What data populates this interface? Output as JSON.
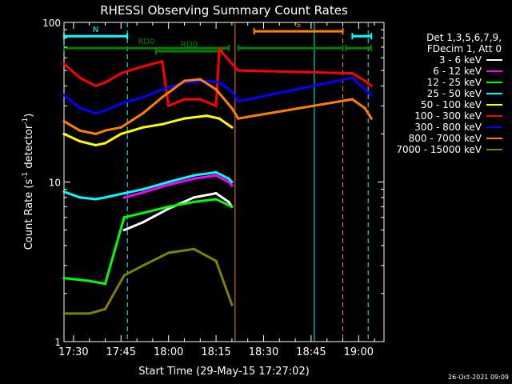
{
  "chart_data": {
    "type": "line",
    "title": "RHESSI Observing Summary Count Rates",
    "xlabel": "Start Time (29-May-15 17:27:02)",
    "ylabel": "Count Rate (s",
    "ylabel_sup": "-1",
    "ylabel_tail": " detector",
    "ylabel_tail_sup": "-1",
    "ylabel_close": ")",
    "y_scale": "log",
    "ylim": [
      1,
      100
    ],
    "y_ticks": [
      "1",
      "10",
      "100"
    ],
    "xlim": [
      "17:27",
      "19:08"
    ],
    "x_ticks": [
      "17:30",
      "17:45",
      "18:00",
      "18:15",
      "18:30",
      "18:45",
      "19:00"
    ],
    "legend_header": [
      "Det 1,3,5,6,7,9,",
      "FDecim 1, Att 0"
    ],
    "legend_position": "right",
    "timestamp": "26-Oct-2021 09:09",
    "series": [
      {
        "name": "3 - 6 keV",
        "color": "#ffffff",
        "points": [
          [
            "17:46",
            5.0
          ],
          [
            "17:52",
            5.6
          ],
          [
            "18:00",
            6.8
          ],
          [
            "18:08",
            8.0
          ],
          [
            "18:15",
            8.5
          ],
          [
            "18:19",
            7.5
          ],
          [
            "18:20",
            7.0
          ]
        ]
      },
      {
        "name": "6 - 12 keV",
        "color": "#ff00ff",
        "points": [
          [
            "17:46",
            8.0
          ],
          [
            "17:52",
            8.6
          ],
          [
            "18:00",
            9.6
          ],
          [
            "18:08",
            10.5
          ],
          [
            "18:15",
            11.0
          ],
          [
            "18:19",
            10.0
          ],
          [
            "18:20",
            9.5
          ]
        ]
      },
      {
        "name": "12 - 25 keV",
        "color": "#00ff00",
        "points": [
          [
            "17:27",
            2.5
          ],
          [
            "17:35",
            2.4
          ],
          [
            "17:40",
            2.3
          ],
          [
            "17:46",
            6.0
          ],
          [
            "17:52",
            6.4
          ],
          [
            "18:00",
            7.0
          ],
          [
            "18:08",
            7.5
          ],
          [
            "18:15",
            7.8
          ],
          [
            "18:20",
            7.0
          ]
        ]
      },
      {
        "name": "25 - 50 keV",
        "color": "#00ffff",
        "points": [
          [
            "17:27",
            8.7
          ],
          [
            "17:32",
            8.0
          ],
          [
            "17:37",
            7.8
          ],
          [
            "17:40",
            8.0
          ],
          [
            "17:46",
            8.5
          ],
          [
            "17:52",
            9.0
          ],
          [
            "18:00",
            10.0
          ],
          [
            "18:08",
            11.0
          ],
          [
            "18:15",
            11.5
          ],
          [
            "18:19",
            10.5
          ],
          [
            "18:20",
            10.0
          ]
        ]
      },
      {
        "name": "50 - 100 keV",
        "color": "#ffff00",
        "points": [
          [
            "17:27",
            20
          ],
          [
            "17:32",
            18
          ],
          [
            "17:37",
            17
          ],
          [
            "17:40",
            17.5
          ],
          [
            "17:45",
            20
          ],
          [
            "17:52",
            22
          ],
          [
            "17:58",
            23
          ],
          [
            "18:05",
            25
          ],
          [
            "18:12",
            26
          ],
          [
            "18:16",
            25
          ],
          [
            "18:20",
            22
          ]
        ]
      },
      {
        "name": "100 - 300 keV",
        "color": "#ff0000",
        "points": [
          [
            "17:27",
            55
          ],
          [
            "17:32",
            45
          ],
          [
            "17:37",
            40
          ],
          [
            "17:40",
            42
          ],
          [
            "17:45",
            48
          ],
          [
            "17:52",
            53
          ],
          [
            "17:58",
            57
          ],
          [
            "18:00",
            30
          ],
          [
            "18:05",
            33
          ],
          [
            "18:10",
            33
          ],
          [
            "18:15",
            30
          ],
          [
            "18:16",
            68
          ],
          [
            "18:20",
            55
          ],
          [
            "18:22",
            50
          ],
          [
            "18:58",
            48
          ],
          [
            "19:02",
            43
          ],
          [
            "19:04",
            40
          ]
        ]
      },
      {
        "name": "300 - 800 keV",
        "color": "#0000ff",
        "points": [
          [
            "17:27",
            35
          ],
          [
            "17:32",
            29
          ],
          [
            "17:37",
            27
          ],
          [
            "17:40",
            28
          ],
          [
            "17:45",
            31
          ],
          [
            "17:52",
            34
          ],
          [
            "17:58",
            38
          ],
          [
            "18:05",
            42
          ],
          [
            "18:12",
            43
          ],
          [
            "18:16",
            42
          ],
          [
            "18:20",
            37
          ],
          [
            "18:22",
            32
          ],
          [
            "18:58",
            45
          ],
          [
            "19:02",
            38
          ],
          [
            "19:04",
            35
          ]
        ]
      },
      {
        "name": "800 - 7000 keV",
        "color": "#ff8000",
        "points": [
          [
            "17:27",
            24
          ],
          [
            "17:32",
            21
          ],
          [
            "17:37",
            20
          ],
          [
            "17:40",
            21
          ],
          [
            "17:45",
            22
          ],
          [
            "17:52",
            27
          ],
          [
            "17:58",
            34
          ],
          [
            "18:05",
            43
          ],
          [
            "18:10",
            44
          ],
          [
            "18:15",
            38
          ],
          [
            "18:20",
            29
          ],
          [
            "18:22",
            25
          ],
          [
            "18:58",
            33
          ],
          [
            "19:02",
            29
          ],
          [
            "19:04",
            25
          ]
        ]
      },
      {
        "name": "7000 - 15000 keV",
        "color": "#808000",
        "points": [
          [
            "17:27",
            1.5
          ],
          [
            "17:35",
            1.5
          ],
          [
            "17:40",
            1.6
          ],
          [
            "17:46",
            2.6
          ],
          [
            "17:52",
            3.0
          ],
          [
            "18:00",
            3.6
          ],
          [
            "18:08",
            3.8
          ],
          [
            "18:15",
            3.2
          ],
          [
            "18:20",
            1.7
          ]
        ]
      }
    ],
    "annotations": [
      {
        "label": "N",
        "color": "#00ffff",
        "type": "bar",
        "from": "17:27",
        "to": "17:47",
        "y": 82
      },
      {
        "label": "",
        "color": "#00ffff",
        "type": "bar",
        "from": "18:58",
        "to": "19:04",
        "y": 82
      },
      {
        "label": "S",
        "color": "#ff8000",
        "type": "bar",
        "from": "18:27",
        "to": "18:55",
        "y": 88
      },
      {
        "label": "RD0",
        "color": "#008000",
        "type": "bar",
        "from": "17:27",
        "to": "18:19",
        "y": 69
      },
      {
        "label": "",
        "color": "#008000",
        "type": "bar",
        "from": "18:22",
        "to": "18:55",
        "y": 69
      },
      {
        "label": "",
        "color": "#008000",
        "type": "bar",
        "from": "18:56",
        "to": "19:04",
        "y": 69
      },
      {
        "label": "RD0",
        "color": "#008000",
        "type": "bar",
        "from": "17:56",
        "to": "18:17",
        "y": 66
      }
    ],
    "vlines": [
      {
        "t": "17:47",
        "color": "#00ffff",
        "dashed": true
      },
      {
        "t": "18:21",
        "color": "#ff8000",
        "dashed": false
      },
      {
        "t": "18:46",
        "color": "#00ffff",
        "dashed": false
      },
      {
        "t": "18:55",
        "color": "#ff8000",
        "dashed": true
      },
      {
        "t": "19:03",
        "color": "#00ffff",
        "dashed": true
      }
    ]
  }
}
